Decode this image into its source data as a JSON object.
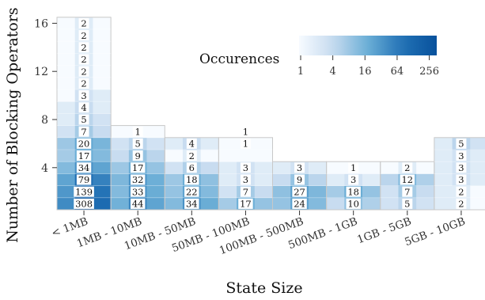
{
  "chart_data": {
    "type": "heatmap",
    "xlabel": "State Size",
    "ylabel": "Number of Blocking Operators",
    "x_categories": [
      "< 1MB",
      "1MB - 10MB",
      "10MB - 50MB",
      "50MB - 100MB",
      "100MB - 500MB",
      "500MB - 1GB",
      "1GB - 5GB",
      "5GB - 10GB"
    ],
    "y_ticks": [
      4,
      8,
      12,
      16
    ],
    "ylim": [
      0.5,
      16.5
    ],
    "color_scale": {
      "title": "Occurences",
      "scale": "log",
      "ticks": [
        "1",
        "4",
        "16",
        "64",
        "256"
      ],
      "min": 1,
      "max": 308,
      "low_color": "#f7fbff",
      "high_color": "#08519c"
    },
    "column_counts": [
      {
        "x": "< 1MB",
        "y": 1,
        "count": "308"
      },
      {
        "x": "< 1MB",
        "y": 2,
        "count": "139"
      },
      {
        "x": "< 1MB",
        "y": 3,
        "count": "79"
      },
      {
        "x": "< 1MB",
        "y": 4,
        "count": "34"
      },
      {
        "x": "< 1MB",
        "y": 5,
        "count": "17"
      },
      {
        "x": "< 1MB",
        "y": 6,
        "count": "20"
      },
      {
        "x": "< 1MB",
        "y": 7,
        "count": "7"
      },
      {
        "x": "< 1MB",
        "y": 8,
        "count": "5"
      },
      {
        "x": "< 1MB",
        "y": 9,
        "count": "4"
      },
      {
        "x": "< 1MB",
        "y": 10,
        "count": "3"
      },
      {
        "x": "< 1MB",
        "y": 11,
        "count": "2"
      },
      {
        "x": "< 1MB",
        "y": 12,
        "count": "2"
      },
      {
        "x": "< 1MB",
        "y": 13,
        "count": "2"
      },
      {
        "x": "< 1MB",
        "y": 14,
        "count": "2"
      },
      {
        "x": "< 1MB",
        "y": 15,
        "count": "2"
      },
      {
        "x": "< 1MB",
        "y": 16,
        "count": "2"
      },
      {
        "x": "1MB - 10MB",
        "y": 1,
        "count": "44"
      },
      {
        "x": "1MB - 10MB",
        "y": 2,
        "count": "33"
      },
      {
        "x": "1MB - 10MB",
        "y": 3,
        "count": "32"
      },
      {
        "x": "1MB - 10MB",
        "y": 4,
        "count": "17"
      },
      {
        "x": "1MB - 10MB",
        "y": 5,
        "count": "9"
      },
      {
        "x": "1MB - 10MB",
        "y": 6,
        "count": "5"
      },
      {
        "x": "1MB - 10MB",
        "y": 7,
        "count": "1"
      },
      {
        "x": "10MB - 50MB",
        "y": 1,
        "count": "34"
      },
      {
        "x": "10MB - 50MB",
        "y": 2,
        "count": "22"
      },
      {
        "x": "10MB - 50MB",
        "y": 3,
        "count": "18"
      },
      {
        "x": "10MB - 50MB",
        "y": 4,
        "count": "6"
      },
      {
        "x": "10MB - 50MB",
        "y": 5,
        "count": "2"
      },
      {
        "x": "10MB - 50MB",
        "y": 6,
        "count": "4"
      },
      {
        "x": "50MB - 100MB",
        "y": 1,
        "count": "17"
      },
      {
        "x": "50MB - 100MB",
        "y": 2,
        "count": "7"
      },
      {
        "x": "50MB - 100MB",
        "y": 3,
        "count": "3"
      },
      {
        "x": "50MB - 100MB",
        "y": 4,
        "count": "3"
      },
      {
        "x": "50MB - 100MB",
        "y": 6,
        "count": "1"
      },
      {
        "x": "50MB - 100MB",
        "y": 7,
        "count": "1"
      },
      {
        "x": "100MB - 500MB",
        "y": 1,
        "count": "24"
      },
      {
        "x": "100MB - 500MB",
        "y": 2,
        "count": "27"
      },
      {
        "x": "100MB - 500MB",
        "y": 3,
        "count": "9"
      },
      {
        "x": "100MB - 500MB",
        "y": 4,
        "count": "3"
      },
      {
        "x": "500MB - 1GB",
        "y": 1,
        "count": "10"
      },
      {
        "x": "500MB - 1GB",
        "y": 2,
        "count": "18"
      },
      {
        "x": "500MB - 1GB",
        "y": 3,
        "count": "3"
      },
      {
        "x": "500MB - 1GB",
        "y": 4,
        "count": "1"
      },
      {
        "x": "1GB - 5GB",
        "y": 1,
        "count": "5"
      },
      {
        "x": "1GB - 5GB",
        "y": 2,
        "count": "7"
      },
      {
        "x": "1GB - 5GB",
        "y": 3,
        "count": "12"
      },
      {
        "x": "1GB - 5GB",
        "y": 4,
        "count": "2"
      },
      {
        "x": "5GB - 10GB",
        "y": 1,
        "count": "2"
      },
      {
        "x": "5GB - 10GB",
        "y": 2,
        "count": "2"
      },
      {
        "x": "5GB - 10GB",
        "y": 3,
        "count": "3"
      },
      {
        "x": "5GB - 10GB",
        "y": 4,
        "count": "3"
      },
      {
        "x": "5GB - 10GB",
        "y": 5,
        "count": "3"
      },
      {
        "x": "5GB - 10GB",
        "y": 6,
        "count": "5"
      }
    ],
    "sub_columns_per_category": 3,
    "sub_cell_counts": {
      "< 1MB": [
        [
          40,
          308,
          95
        ],
        [
          30,
          139,
          70
        ],
        [
          22,
          79,
          50
        ],
        [
          12,
          34,
          22
        ],
        [
          7,
          17,
          12
        ],
        [
          8,
          20,
          14
        ],
        [
          3,
          7,
          4
        ],
        [
          2,
          5,
          3
        ],
        [
          2,
          4,
          2
        ],
        [
          1,
          3,
          2
        ],
        [
          1,
          2,
          1
        ],
        [
          1,
          2,
          1
        ],
        [
          1,
          2,
          1
        ],
        [
          1,
          2,
          1
        ],
        [
          1,
          2,
          1
        ],
        [
          1,
          2,
          1
        ]
      ],
      "1MB - 10MB": [
        [
          16,
          44,
          22
        ],
        [
          12,
          33,
          18
        ],
        [
          13,
          32,
          17
        ],
        [
          8,
          17,
          9
        ],
        [
          4,
          9,
          5
        ],
        [
          3,
          5,
          3
        ],
        [
          1,
          1,
          1
        ]
      ],
      "10MB - 50MB": [
        [
          12,
          34,
          18
        ],
        [
          9,
          22,
          12
        ],
        [
          8,
          18,
          10
        ],
        [
          3,
          6,
          4
        ],
        [
          1,
          2,
          1
        ],
        [
          2,
          4,
          2
        ]
      ],
      "50MB - 100MB": [
        [
          7,
          17,
          9
        ],
        [
          3,
          7,
          4
        ],
        [
          2,
          3,
          2
        ],
        [
          2,
          3,
          2
        ],
        [
          1,
          1,
          1
        ],
        [
          1,
          1,
          1
        ]
      ],
      "100MB - 500MB": [
        [
          9,
          24,
          12
        ],
        [
          10,
          27,
          13
        ],
        [
          4,
          9,
          5
        ],
        [
          2,
          3,
          2
        ]
      ],
      "500MB - 1GB": [
        [
          4,
          10,
          6
        ],
        [
          7,
          18,
          9
        ],
        [
          2,
          3,
          2
        ],
        [
          1,
          1,
          1
        ]
      ],
      "1GB - 5GB": [
        [
          3,
          5,
          3
        ],
        [
          3,
          7,
          4
        ],
        [
          5,
          12,
          6
        ],
        [
          1,
          2,
          1
        ]
      ],
      "5GB - 10GB": [
        [
          2,
          2,
          1
        ],
        [
          2,
          2,
          1
        ],
        [
          2,
          3,
          2
        ],
        [
          2,
          3,
          2
        ],
        [
          2,
          3,
          2
        ],
        [
          2,
          5,
          3
        ]
      ]
    }
  }
}
